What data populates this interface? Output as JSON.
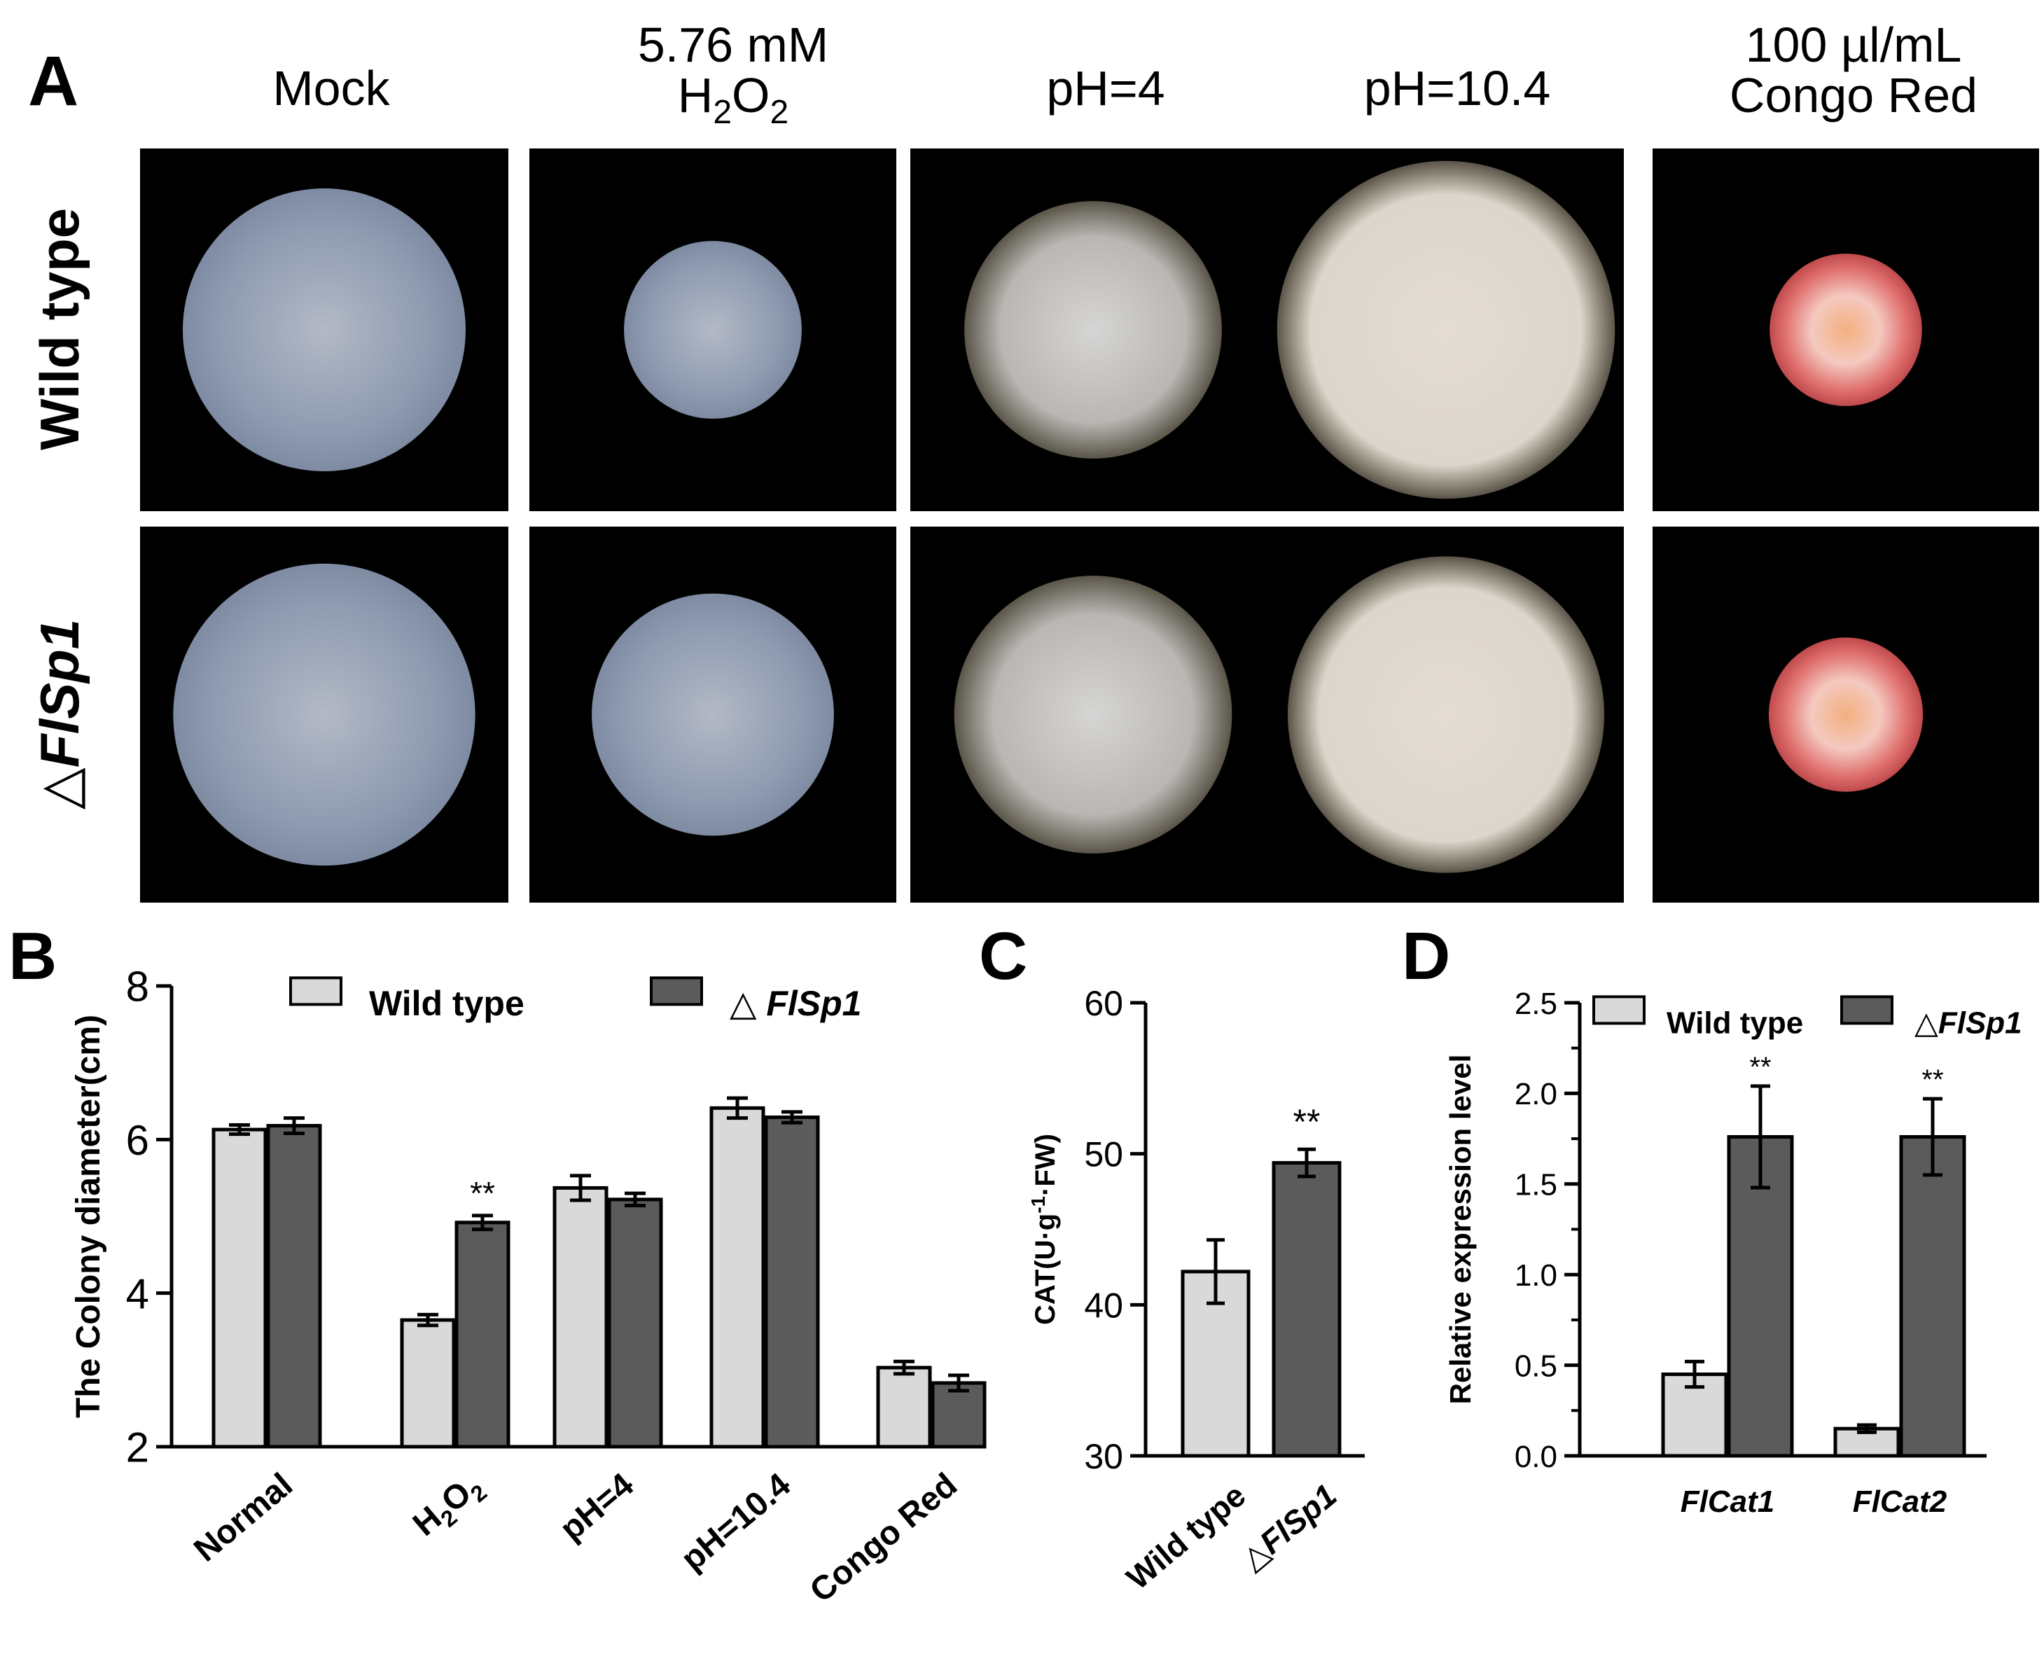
{
  "colors": {
    "wild_type_bar": "#d9d9d9",
    "mutant_bar": "#5b5b5b",
    "panel_background": "#000000",
    "colony_bluegray": "#8d9ab0",
    "colony_cream": "#ddd6cc",
    "colony_rim_dark": "#5a5548",
    "colony_red": "#e0706e",
    "colony_center_orange": "#f3b07f"
  },
  "panel_a": {
    "label": "A",
    "columns": [
      {
        "line1": "Mock",
        "line2": ""
      },
      {
        "line1": "5.76 mM",
        "line2": "H2O2"
      },
      {
        "line1": "pH=4",
        "line2": ""
      },
      {
        "line1": "pH=10.4",
        "line2": ""
      },
      {
        "line1": "100 µl/mL",
        "line2": "Congo Red"
      }
    ],
    "rows": [
      {
        "prefix": "",
        "name": "Wild type"
      },
      {
        "prefix": "△",
        "name": "FlSp1"
      }
    ],
    "colonies": [
      [
        {
          "style": "bluegray",
          "relative_size": 0.78
        },
        {
          "style": "bluegray",
          "relative_size": 0.49
        },
        {
          "style": "gray_rim",
          "relative_size": 0.71
        },
        {
          "style": "cream_rim",
          "relative_size": 0.95
        },
        {
          "style": "red",
          "relative_size": 0.42
        }
      ],
      [
        {
          "style": "bluegray",
          "relative_size": 0.82
        },
        {
          "style": "bluegray",
          "relative_size": 0.66
        },
        {
          "style": "gray_rim",
          "relative_size": 0.76
        },
        {
          "style": "cream_rim",
          "relative_size": 0.89
        },
        {
          "style": "red",
          "relative_size": 0.41
        }
      ]
    ]
  },
  "chart_data": [
    {
      "panel": "B",
      "type": "bar",
      "title": "",
      "xlabel": "",
      "ylabel": "The Colony diameter(cm)",
      "ylim": [
        2,
        8
      ],
      "yticks": [
        "2",
        "4",
        "6",
        "8"
      ],
      "categories": [
        "Normal",
        "H2O2",
        "pH=4",
        "pH=10.4",
        "Congo Red"
      ],
      "legend": {
        "placement": "top",
        "entries": [
          {
            "prefix": "",
            "name": "Wild type"
          },
          {
            "prefix": "△ ",
            "name": "FlSp1"
          }
        ]
      },
      "series": [
        {
          "name": "Wild type",
          "color": "#d9d9d9",
          "values": [
            6.13,
            3.65,
            5.37,
            6.41,
            3.03
          ],
          "errors": [
            0.06,
            0.07,
            0.16,
            0.13,
            0.08
          ]
        },
        {
          "name": "△FlSp1",
          "color": "#5b5b5b",
          "values": [
            6.18,
            4.92,
            5.22,
            6.29,
            2.83
          ],
          "errors": [
            0.1,
            0.09,
            0.08,
            0.07,
            0.1
          ]
        }
      ],
      "significance": [
        {
          "series": 1,
          "index": 1,
          "text": "**"
        }
      ],
      "grid": false
    },
    {
      "panel": "C",
      "type": "bar",
      "title": "",
      "xlabel": "",
      "ylabel": "CAT(U·g-1·FW)",
      "ylim": [
        30,
        60
      ],
      "yticks": [
        "30",
        "40",
        "50",
        "60"
      ],
      "categories": [
        "Wild type",
        "△FlSp1"
      ],
      "series": [
        {
          "name": "",
          "colors": [
            "#d9d9d9",
            "#5b5b5b"
          ],
          "values": [
            42.2,
            49.4
          ],
          "errors": [
            2.1,
            0.9
          ]
        }
      ],
      "significance": [
        {
          "series": 0,
          "index": 1,
          "text": "**"
        }
      ],
      "grid": false
    },
    {
      "panel": "D",
      "type": "bar",
      "title": "",
      "xlabel": "",
      "ylabel": "Relative expression level",
      "ylim": [
        0,
        2.5
      ],
      "yticks": [
        "0.0",
        "0.5",
        "1.0",
        "1.5",
        "2.0",
        "2.5"
      ],
      "categories": [
        "FlCat1",
        "FlCat2"
      ],
      "legend": {
        "placement": "top",
        "entries": [
          {
            "prefix": "",
            "name": "Wild type"
          },
          {
            "prefix": "△",
            "name": "FlSp1"
          }
        ]
      },
      "series": [
        {
          "name": "Wild type",
          "color": "#d9d9d9",
          "values": [
            0.45,
            0.15
          ],
          "errors": [
            0.07,
            0.02
          ]
        },
        {
          "name": "△FlSp1",
          "color": "#5b5b5b",
          "values": [
            1.76,
            1.76
          ],
          "errors": [
            0.28,
            0.21
          ]
        }
      ],
      "significance": [
        {
          "series": 1,
          "index": 0,
          "text": "**"
        },
        {
          "series": 1,
          "index": 1,
          "text": "**"
        }
      ],
      "grid": false
    }
  ],
  "panel_labels": {
    "b": "B",
    "c": "C",
    "d": "D"
  }
}
